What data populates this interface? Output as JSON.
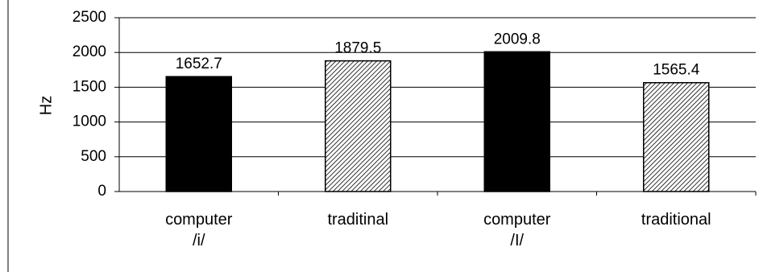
{
  "chart_data": {
    "type": "bar",
    "categories": [
      [
        "computer",
        "/i/"
      ],
      [
        "traditinal"
      ],
      [
        "computer",
        "/I/"
      ],
      [
        "traditional"
      ]
    ],
    "values": [
      1652.7,
      1879.5,
      2009.8,
      1565.4
    ],
    "data_labels": [
      "1652.7",
      "1879.5",
      "2009.8",
      "1565.4"
    ],
    "bar_fills": [
      "solid-black",
      "hatched",
      "solid-black",
      "hatched"
    ],
    "ylabel": "Hz",
    "ylim": [
      0,
      2500
    ],
    "yticks": [
      0,
      500,
      1000,
      1500,
      2000,
      2500
    ],
    "ytick_labels": [
      "0",
      "500",
      "1000",
      "1500",
      "2000",
      "2500"
    ],
    "grid": "horizontal",
    "legend": "none",
    "colors": {
      "bar_solid": "#000000",
      "hatch_line": "#000000",
      "hatch_bg": "#ffffff",
      "axis": "#000000",
      "grid": "#000000"
    }
  }
}
